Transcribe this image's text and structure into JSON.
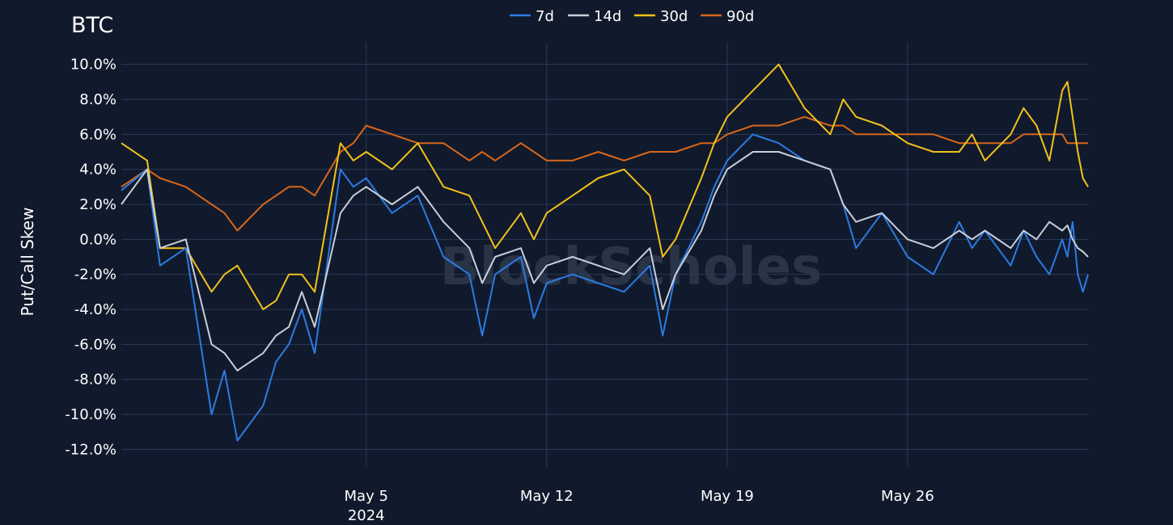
{
  "chart_data": {
    "type": "line",
    "title": "BTC",
    "watermark": "BlockScholes",
    "ylabel": "Put/Call Skew",
    "xlabel": "",
    "ylim": [
      -13.0,
      11.0
    ],
    "yticks": [
      10,
      8,
      6,
      4,
      2,
      0,
      -2,
      -4,
      -6,
      -8,
      -10,
      -12
    ],
    "ytick_labels": [
      "10.0%",
      "8.0%",
      "6.0%",
      "4.0%",
      "2.0%",
      "0.0%",
      "-2.0%",
      "-4.0%",
      "-6.0%",
      "-8.0%",
      "-10.0%",
      "-12.0%"
    ],
    "xlim_days": [
      -0.5,
      37.0
    ],
    "xticks": [
      {
        "day": 9,
        "label": "May 5",
        "sublabel": "2024"
      },
      {
        "day": 16,
        "label": "May 12",
        "sublabel": ""
      },
      {
        "day": 23,
        "label": "May 19",
        "sublabel": ""
      },
      {
        "day": 30,
        "label": "May 26",
        "sublabel": ""
      }
    ],
    "legend_position": "top-center",
    "series": [
      {
        "name": "7d",
        "color": "#2b7be4",
        "x": [
          -0.5,
          0.5,
          1.0,
          2.0,
          3.0,
          3.5,
          4.0,
          5.0,
          5.5,
          6.0,
          6.5,
          7.0,
          8.0,
          8.5,
          9.0,
          10.0,
          11.0,
          12.0,
          13.0,
          13.5,
          14.0,
          15.0,
          15.5,
          16.0,
          17.0,
          18.0,
          19.0,
          20.0,
          20.5,
          21.0,
          22.0,
          22.5,
          23.0,
          24.0,
          25.0,
          26.0,
          27.0,
          27.5,
          28.0,
          29.0,
          30.0,
          31.0,
          32.0,
          32.5,
          33.0,
          34.0,
          34.5,
          35.0,
          35.5,
          36.0,
          36.2,
          36.4,
          36.6,
          36.8,
          37.0
        ],
        "y": [
          2.8,
          4.0,
          -1.5,
          -0.5,
          -10.0,
          -7.5,
          -11.5,
          -9.5,
          -7.0,
          -6.0,
          -4.0,
          -6.5,
          4.0,
          3.0,
          3.5,
          1.5,
          2.5,
          -1.0,
          -2.0,
          -5.5,
          -2.0,
          -1.0,
          -4.5,
          -2.5,
          -2.0,
          -2.5,
          -3.0,
          -1.5,
          -5.5,
          -2.0,
          1.0,
          3.0,
          4.5,
          6.0,
          5.5,
          4.5,
          4.0,
          2.0,
          -0.5,
          1.5,
          -1.0,
          -2.0,
          1.0,
          -0.5,
          0.5,
          -1.5,
          0.5,
          -1.0,
          -2.0,
          0.0,
          -1.0,
          1.0,
          -2.0,
          -3.0,
          -2.0
        ]
      },
      {
        "name": "14d",
        "color": "#c8cfd8",
        "x": [
          -0.5,
          0.5,
          1.0,
          2.0,
          3.0,
          3.5,
          4.0,
          5.0,
          5.5,
          6.0,
          6.5,
          7.0,
          8.0,
          8.5,
          9.0,
          10.0,
          11.0,
          12.0,
          13.0,
          13.5,
          14.0,
          15.0,
          15.5,
          16.0,
          17.0,
          18.0,
          19.0,
          20.0,
          20.5,
          21.0,
          22.0,
          22.5,
          23.0,
          24.0,
          25.0,
          26.0,
          27.0,
          27.5,
          28.0,
          29.0,
          30.0,
          31.0,
          32.0,
          32.5,
          33.0,
          34.0,
          34.5,
          35.0,
          35.5,
          36.0,
          36.2,
          36.4,
          36.6,
          36.8,
          37.0
        ],
        "y": [
          2.0,
          4.0,
          -0.5,
          0.0,
          -6.0,
          -6.5,
          -7.5,
          -6.5,
          -5.5,
          -5.0,
          -3.0,
          -5.0,
          1.5,
          2.5,
          3.0,
          2.0,
          3.0,
          1.0,
          -0.5,
          -2.5,
          -1.0,
          -0.5,
          -2.5,
          -1.5,
          -1.0,
          -1.5,
          -2.0,
          -0.5,
          -4.0,
          -2.0,
          0.5,
          2.5,
          4.0,
          5.0,
          5.0,
          4.5,
          4.0,
          2.0,
          1.0,
          1.5,
          0.0,
          -0.5,
          0.5,
          0.0,
          0.5,
          -0.5,
          0.5,
          0.0,
          1.0,
          0.5,
          0.8,
          0.0,
          -0.5,
          -0.7,
          -1.0
        ]
      },
      {
        "name": "30d",
        "color": "#f2c21b",
        "x": [
          -0.5,
          0.5,
          1.0,
          2.0,
          3.0,
          3.5,
          4.0,
          5.0,
          5.5,
          6.0,
          6.5,
          7.0,
          8.0,
          8.5,
          9.0,
          10.0,
          11.0,
          12.0,
          13.0,
          13.5,
          14.0,
          15.0,
          15.5,
          16.0,
          17.0,
          18.0,
          19.0,
          20.0,
          20.5,
          21.0,
          22.0,
          22.5,
          23.0,
          24.0,
          25.0,
          26.0,
          27.0,
          27.5,
          28.0,
          29.0,
          30.0,
          31.0,
          32.0,
          32.5,
          33.0,
          34.0,
          34.5,
          35.0,
          35.5,
          36.0,
          36.2,
          36.4,
          36.6,
          36.8,
          37.0
        ],
        "y": [
          5.5,
          4.5,
          -0.5,
          -0.5,
          -3.0,
          -2.0,
          -1.5,
          -4.0,
          -3.5,
          -2.0,
          -2.0,
          -3.0,
          5.5,
          4.5,
          5.0,
          4.0,
          5.5,
          3.0,
          2.5,
          1.0,
          -0.5,
          1.5,
          0.0,
          1.5,
          2.5,
          3.5,
          4.0,
          2.5,
          -1.0,
          0.0,
          3.5,
          5.5,
          7.0,
          8.5,
          10.0,
          7.5,
          6.0,
          8.0,
          7.0,
          6.5,
          5.5,
          5.0,
          5.0,
          6.0,
          4.5,
          6.0,
          7.5,
          6.5,
          4.5,
          8.5,
          9.0,
          7.0,
          5.0,
          3.5,
          3.0
        ]
      },
      {
        "name": "90d",
        "color": "#d9661a",
        "x": [
          -0.5,
          0.5,
          1.0,
          2.0,
          3.0,
          3.5,
          4.0,
          5.0,
          5.5,
          6.0,
          6.5,
          7.0,
          8.0,
          8.5,
          9.0,
          10.0,
          11.0,
          12.0,
          13.0,
          13.5,
          14.0,
          15.0,
          15.5,
          16.0,
          17.0,
          18.0,
          19.0,
          20.0,
          20.5,
          21.0,
          22.0,
          22.5,
          23.0,
          24.0,
          25.0,
          26.0,
          27.0,
          27.5,
          28.0,
          29.0,
          30.0,
          31.0,
          32.0,
          32.5,
          33.0,
          34.0,
          34.5,
          35.0,
          35.5,
          36.0,
          36.2,
          36.4,
          36.6,
          36.8,
          37.0
        ],
        "y": [
          3.0,
          4.0,
          3.5,
          3.0,
          2.0,
          1.5,
          0.5,
          2.0,
          2.5,
          3.0,
          3.0,
          2.5,
          5.0,
          5.5,
          6.5,
          6.0,
          5.5,
          5.5,
          4.5,
          5.0,
          4.5,
          5.5,
          5.0,
          4.5,
          4.5,
          5.0,
          4.5,
          5.0,
          5.0,
          5.0,
          5.5,
          5.5,
          6.0,
          6.5,
          6.5,
          7.0,
          6.5,
          6.5,
          6.0,
          6.0,
          6.0,
          6.0,
          5.5,
          5.5,
          5.5,
          5.5,
          6.0,
          6.0,
          6.0,
          6.0,
          5.5,
          5.5,
          5.5,
          5.5,
          5.5
        ]
      }
    ]
  }
}
